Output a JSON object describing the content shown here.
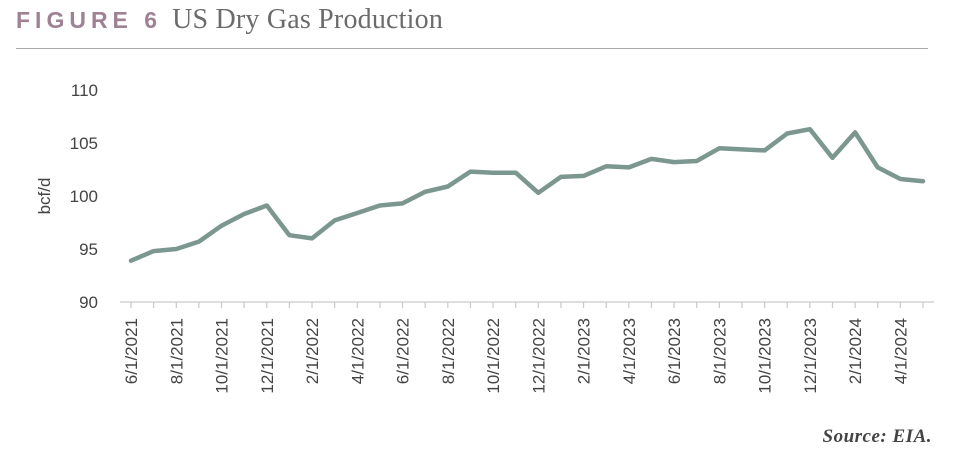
{
  "header": {
    "figure_label": "FIGURE 6",
    "title": "US Dry Gas Production"
  },
  "source": "Source: EIA.",
  "colors": {
    "line": "#7b978f",
    "axis": "#c9c9c9",
    "tick_text": "#444444",
    "figure_label": "#9e8294"
  },
  "chart_data": {
    "type": "line",
    "title": "US Dry Gas Production",
    "ylabel": "bcf/d",
    "xlabel": "",
    "ylim": [
      90,
      110
    ],
    "yticks": [
      90,
      95,
      100,
      105,
      110
    ],
    "grid": false,
    "legend": "none",
    "x": [
      "6/1/2021",
      "7/1/2021",
      "8/1/2021",
      "9/1/2021",
      "10/1/2021",
      "11/1/2021",
      "12/1/2021",
      "1/1/2022",
      "2/1/2022",
      "3/1/2022",
      "4/1/2022",
      "5/1/2022",
      "6/1/2022",
      "7/1/2022",
      "8/1/2022",
      "9/1/2022",
      "10/1/2022",
      "11/1/2022",
      "12/1/2022",
      "1/1/2023",
      "2/1/2023",
      "3/1/2023",
      "4/1/2023",
      "5/1/2023",
      "6/1/2023",
      "7/1/2023",
      "8/1/2023",
      "9/1/2023",
      "10/1/2023",
      "11/1/2023",
      "12/1/2023",
      "1/1/2024",
      "2/1/2024",
      "3/1/2024",
      "4/1/2024",
      "5/1/2024"
    ],
    "xtick_labels": [
      "6/1/2021",
      "8/1/2021",
      "10/1/2021",
      "12/1/2021",
      "2/1/2022",
      "4/1/2022",
      "6/1/2022",
      "8/1/2022",
      "10/1/2022",
      "12/1/2022",
      "2/1/2023",
      "4/1/2023",
      "6/1/2023",
      "8/1/2023",
      "10/1/2023",
      "12/1/2023",
      "2/1/2024",
      "4/1/2024"
    ],
    "series": [
      {
        "values": [
          93.9,
          94.8,
          95.0,
          95.7,
          97.2,
          98.3,
          99.1,
          96.3,
          96.0,
          97.7,
          98.4,
          99.1,
          99.3,
          100.4,
          100.9,
          102.3,
          102.2,
          102.2,
          100.3,
          101.8,
          101.9,
          102.8,
          102.7,
          103.5,
          103.2,
          103.3,
          104.5,
          104.4,
          104.3,
          105.9,
          106.3,
          103.6,
          106.0,
          102.7,
          101.6,
          101.4
        ]
      }
    ]
  }
}
